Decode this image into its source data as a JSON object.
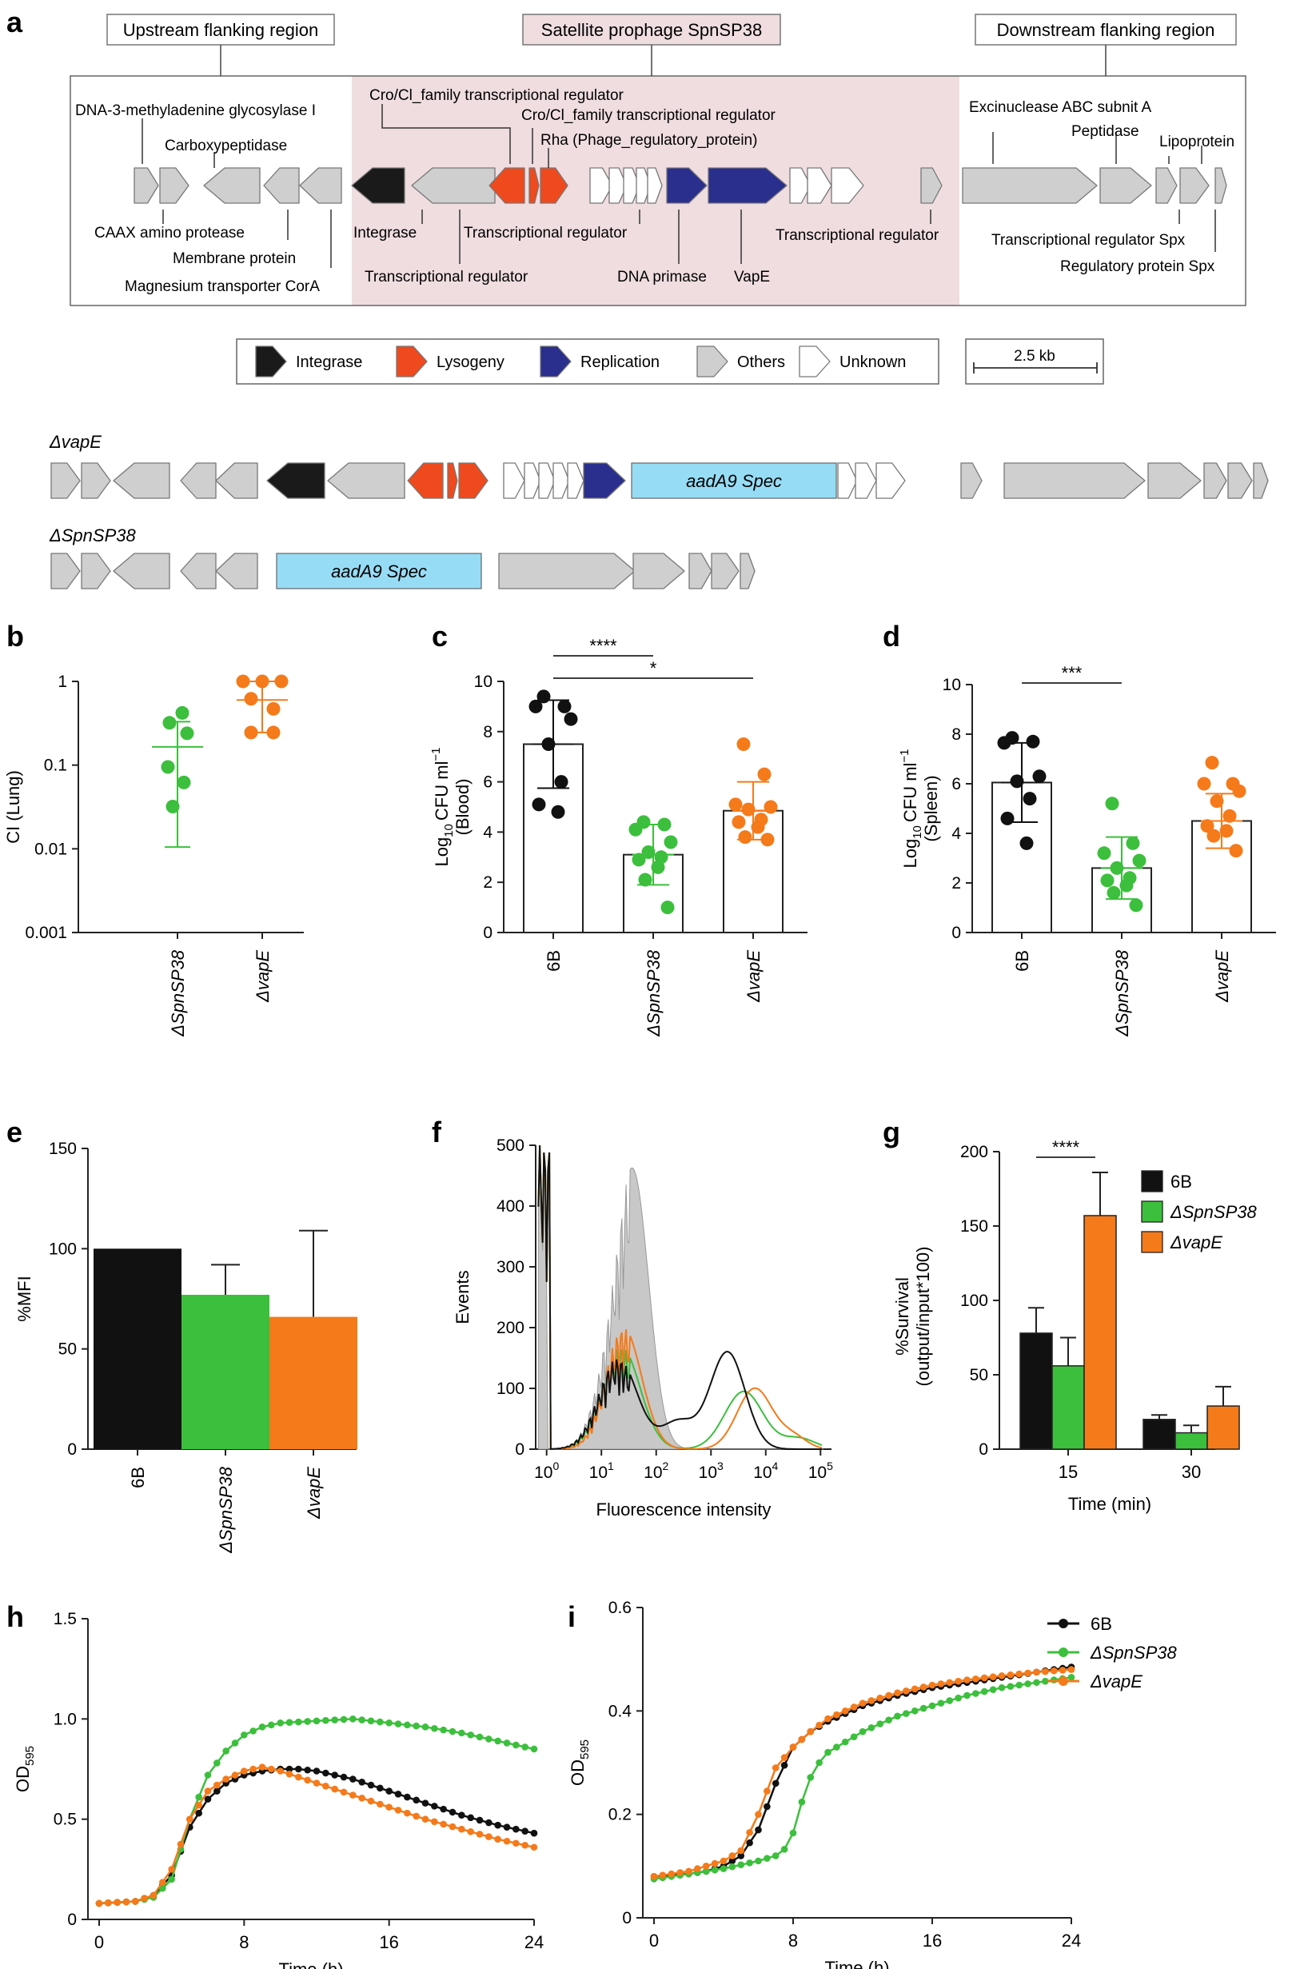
{
  "colors": {
    "integrase": "#1a1a1a",
    "lysogeny": "#ee4a1e",
    "replication": "#2a2e8c",
    "others": "#cfcfcf",
    "unknown": "#ffffff",
    "prophage_bg": "#efdde0",
    "spec": "#97dcf5",
    "wt": "#111111",
    "spn": "#3cbf3c",
    "vap": "#f57a1a",
    "gray_fill": "#c8c8c8"
  },
  "panel_a": {
    "letter": "a",
    "region_upstream": "Upstream flanking region",
    "region_prophage": "Satellite prophage SpnSP38",
    "region_downstream": "Downstream flanking region",
    "gene_labels": {
      "dna3": "DNA-3-methyladenine glycosylase I",
      "carboxy": "Carboxypeptidase",
      "caax": "CAAX amino protease",
      "membrane": "Membrane protein",
      "magnesium": "Magnesium transporter CorA",
      "cro1": "Cro/Cl_family transcriptional regulator",
      "cro2": "Cro/Cl_family transcriptional regulator",
      "rha": "Rha (Phage_regulatory_protein)",
      "integrase": "Integrase",
      "tr1": "Transcriptional regulator",
      "tr2": "Transcriptional regulator",
      "dnaprimase": "DNA primase",
      "vape": "VapE",
      "tr3": "Transcriptional regulator",
      "exinuclease": "Excinuclease ABC subnit A",
      "peptidase": "Peptidase",
      "lipoprotein": "Lipoprotein",
      "spx": "Transcriptional regulator Spx",
      "regspx": "Regulatory protein Spx"
    },
    "legend": [
      "Integrase",
      "Lysogeny",
      "Replication",
      "Others",
      "Unknown"
    ],
    "scale": "2.5 kb",
    "mutant1": "ΔvapE",
    "mutant2": "ΔSpnSP38",
    "spec_label": "aadA9 Spec"
  },
  "panel_b": {
    "letter": "b",
    "chart_data": {
      "type": "scatter",
      "ylabel": "CI (Lung)",
      "yscale": "log",
      "ylim": [
        0.001,
        1
      ],
      "yticks": [
        "0.001",
        "0.01",
        "0.1",
        "1"
      ],
      "categories": [
        "ΔSpnSP38",
        "ΔvapE"
      ],
      "groups": [
        {
          "name": "ΔSpnSP38",
          "points": [
            0.42,
            0.32,
            0.24,
            0.095,
            0.062,
            0.032
          ],
          "mean": 0.165,
          "err_low": 0.0105,
          "err_high": 0.33
        },
        {
          "name": "ΔvapE",
          "points": [
            1.0,
            1.0,
            1.0,
            0.62,
            0.47,
            0.245,
            0.245
          ],
          "mean": 0.6,
          "err_low": 0.245,
          "err_high": 1.0
        }
      ]
    }
  },
  "panel_c": {
    "letter": "c",
    "chart_data": {
      "type": "bar",
      "ylabel": "Log10 CFU ml−1 (Blood)",
      "ylabel_main": "CFU ml",
      "ylabel_sub": "10",
      "ylabel_prefix": "Log",
      "ylabel_sup": "−1",
      "ylabel_2": "(Blood)",
      "ylim": [
        0,
        10
      ],
      "yticks": [
        "0",
        "2",
        "4",
        "6",
        "8",
        "10"
      ],
      "categories": [
        "6B",
        "ΔSpnSP38",
        "ΔvapE"
      ],
      "values": [
        7.5,
        3.1,
        4.85
      ],
      "err": [
        1.75,
        1.2,
        1.15
      ],
      "points": [
        [
          9.4,
          9.0,
          9.0,
          8.5,
          7.5,
          6.0,
          5.1,
          4.8
        ],
        [
          4.4,
          4.3,
          4.1,
          3.6,
          3.2,
          3.0,
          2.9,
          2.6,
          2.1,
          1.0
        ],
        [
          7.5,
          6.3,
          5.1,
          5.0,
          4.9,
          4.5,
          4.4,
          4.2,
          3.8,
          3.7
        ]
      ],
      "sig": [
        {
          "from": 0,
          "to": 1,
          "label": "****"
        },
        {
          "from": 0,
          "to": 2,
          "label": "*"
        }
      ]
    }
  },
  "panel_d": {
    "letter": "d",
    "chart_data": {
      "type": "bar",
      "ylabel_prefix": "Log",
      "ylabel_sub": "10",
      "ylabel_main": "CFU ml",
      "ylabel_sup": "−1",
      "ylabel_2": "(Spleen)",
      "ylim": [
        0,
        10
      ],
      "yticks": [
        "0",
        "2",
        "4",
        "6",
        "8",
        "10"
      ],
      "categories": [
        "6B",
        "ΔSpnSP38",
        "ΔvapE"
      ],
      "values": [
        6.05,
        2.6,
        4.5
      ],
      "err": [
        1.6,
        1.25,
        1.1
      ],
      "points": [
        [
          7.85,
          7.7,
          7.65,
          6.3,
          6.1,
          5.4,
          4.6,
          3.6
        ],
        [
          5.2,
          3.6,
          3.2,
          2.9,
          2.6,
          2.2,
          2.1,
          1.9,
          1.6,
          1.1
        ],
        [
          6.85,
          6.0,
          6.0,
          5.7,
          5.3,
          4.7,
          4.3,
          4.1,
          3.9,
          3.3
        ]
      ],
      "sig": [
        {
          "from": 0,
          "to": 1,
          "label": "***"
        }
      ]
    }
  },
  "panel_e": {
    "letter": "e",
    "chart_data": {
      "type": "bar",
      "ylabel": "%MFI",
      "ylim": [
        0,
        150
      ],
      "yticks": [
        "0",
        "50",
        "100",
        "150"
      ],
      "categories": [
        "6B",
        "ΔSpnSP38",
        "ΔvapE"
      ],
      "values": [
        100,
        77,
        66
      ],
      "err_high": [
        0,
        15,
        43
      ]
    }
  },
  "panel_f": {
    "letter": "f",
    "chart_data": {
      "type": "line",
      "ylabel": "Events",
      "xlabel": "Fluorescence intensity",
      "xscale": "log",
      "ylim": [
        0,
        500
      ],
      "yticks": [
        "0",
        "100",
        "200",
        "300",
        "400",
        "500"
      ],
      "xticks_base": [
        "10",
        "10",
        "10",
        "10",
        "10",
        "10"
      ],
      "xticks_exp": [
        "0",
        "1",
        "2",
        "3",
        "4",
        "5"
      ]
    }
  },
  "panel_g": {
    "letter": "g",
    "chart_data": {
      "type": "bar",
      "ylabel_1": "%Survival",
      "ylabel_2": "(output/input*100)",
      "xlabel": "Time (min)",
      "ylim": [
        0,
        200
      ],
      "yticks": [
        "0",
        "50",
        "100",
        "150",
        "200"
      ],
      "categories": [
        "15",
        "30"
      ],
      "series": [
        {
          "name": "6B",
          "values": [
            78,
            20
          ],
          "err": [
            17,
            3
          ]
        },
        {
          "name": "ΔSpnSP38",
          "values": [
            56,
            11
          ],
          "err": [
            19,
            5
          ]
        },
        {
          "name": "ΔvapE",
          "values": [
            157,
            29
          ],
          "err": [
            29,
            13
          ]
        }
      ],
      "sig_label": "****"
    }
  },
  "panel_h": {
    "letter": "h",
    "chart_data": {
      "type": "line",
      "ylabel_main": "OD",
      "ylabel_sub": "595",
      "xlabel": "Time (h)",
      "xlim": [
        0,
        24
      ],
      "ylim": [
        0,
        1.5
      ],
      "xticks": [
        "0",
        "8",
        "16",
        "24"
      ],
      "yticks": [
        "0",
        "0.5",
        "1.0",
        "1.5"
      ],
      "series": [
        {
          "name": "6B",
          "points": [
            [
              0,
              0.08
            ],
            [
              2,
              0.09
            ],
            [
              3,
              0.12
            ],
            [
              4,
              0.22
            ],
            [
              5,
              0.46
            ],
            [
              6,
              0.6
            ],
            [
              7,
              0.68
            ],
            [
              8,
              0.72
            ],
            [
              9,
              0.74
            ],
            [
              10,
              0.75
            ],
            [
              11,
              0.75
            ],
            [
              12,
              0.74
            ],
            [
              14,
              0.7
            ],
            [
              16,
              0.64
            ],
            [
              18,
              0.58
            ],
            [
              20,
              0.52
            ],
            [
              22,
              0.47
            ],
            [
              24,
              0.43
            ]
          ]
        },
        {
          "name": "ΔSpnSP38",
          "points": [
            [
              0,
              0.08
            ],
            [
              2,
              0.09
            ],
            [
              3,
              0.11
            ],
            [
              4,
              0.2
            ],
            [
              5,
              0.5
            ],
            [
              6,
              0.72
            ],
            [
              7,
              0.84
            ],
            [
              8,
              0.92
            ],
            [
              9,
              0.96
            ],
            [
              10,
              0.98
            ],
            [
              12,
              0.99
            ],
            [
              14,
              1.0
            ],
            [
              16,
              0.98
            ],
            [
              18,
              0.96
            ],
            [
              20,
              0.93
            ],
            [
              22,
              0.89
            ],
            [
              24,
              0.85
            ]
          ]
        },
        {
          "name": "ΔvapE",
          "points": [
            [
              0,
              0.08
            ],
            [
              2,
              0.09
            ],
            [
              3,
              0.12
            ],
            [
              4,
              0.25
            ],
            [
              5,
              0.5
            ],
            [
              6,
              0.64
            ],
            [
              7,
              0.7
            ],
            [
              8,
              0.74
            ],
            [
              9,
              0.76
            ],
            [
              10,
              0.74
            ],
            [
              12,
              0.68
            ],
            [
              14,
              0.62
            ],
            [
              16,
              0.56
            ],
            [
              18,
              0.5
            ],
            [
              20,
              0.45
            ],
            [
              22,
              0.4
            ],
            [
              24,
              0.36
            ]
          ]
        }
      ]
    }
  },
  "panel_i": {
    "letter": "i",
    "chart_data": {
      "type": "line",
      "ylabel_main": "OD",
      "ylabel_sub": "595",
      "xlabel": "Time (h)",
      "xlim": [
        0,
        24
      ],
      "ylim": [
        0,
        0.6
      ],
      "xticks": [
        "0",
        "8",
        "16",
        "24"
      ],
      "yticks": [
        "0",
        "0.2",
        "0.4",
        "0.6"
      ],
      "series": [
        {
          "name": "6B",
          "points": [
            [
              0,
              0.08
            ],
            [
              2,
              0.085
            ],
            [
              3,
              0.09
            ],
            [
              4,
              0.1
            ],
            [
              5,
              0.12
            ],
            [
              6,
              0.17
            ],
            [
              7,
              0.26
            ],
            [
              8,
              0.33
            ],
            [
              9,
              0.36
            ],
            [
              10,
              0.38
            ],
            [
              12,
              0.41
            ],
            [
              14,
              0.43
            ],
            [
              16,
              0.445
            ],
            [
              18,
              0.455
            ],
            [
              20,
              0.465
            ],
            [
              22,
              0.475
            ],
            [
              24,
              0.485
            ]
          ]
        },
        {
          "name": "ΔSpnSP38",
          "points": [
            [
              0,
              0.075
            ],
            [
              2,
              0.085
            ],
            [
              4,
              0.095
            ],
            [
              6,
              0.11
            ],
            [
              7,
              0.12
            ],
            [
              7.8,
              0.14
            ],
            [
              8.3,
              0.2
            ],
            [
              8.8,
              0.26
            ],
            [
              9.5,
              0.3
            ],
            [
              10,
              0.32
            ],
            [
              12,
              0.36
            ],
            [
              14,
              0.39
            ],
            [
              16,
              0.41
            ],
            [
              18,
              0.43
            ],
            [
              20,
              0.445
            ],
            [
              22,
              0.455
            ],
            [
              24,
              0.465
            ]
          ]
        },
        {
          "name": "ΔvapE",
          "points": [
            [
              0,
              0.08
            ],
            [
              2,
              0.09
            ],
            [
              3,
              0.1
            ],
            [
              4,
              0.11
            ],
            [
              5,
              0.13
            ],
            [
              6,
              0.2
            ],
            [
              7,
              0.29
            ],
            [
              8,
              0.33
            ],
            [
              9,
              0.36
            ],
            [
              10,
              0.385
            ],
            [
              12,
              0.415
            ],
            [
              14,
              0.435
            ],
            [
              16,
              0.45
            ],
            [
              18,
              0.46
            ],
            [
              20,
              0.468
            ],
            [
              22,
              0.475
            ],
            [
              24,
              0.48
            ]
          ]
        }
      ],
      "legend": [
        "6B",
        "ΔSpnSP38",
        "ΔvapE"
      ]
    }
  }
}
